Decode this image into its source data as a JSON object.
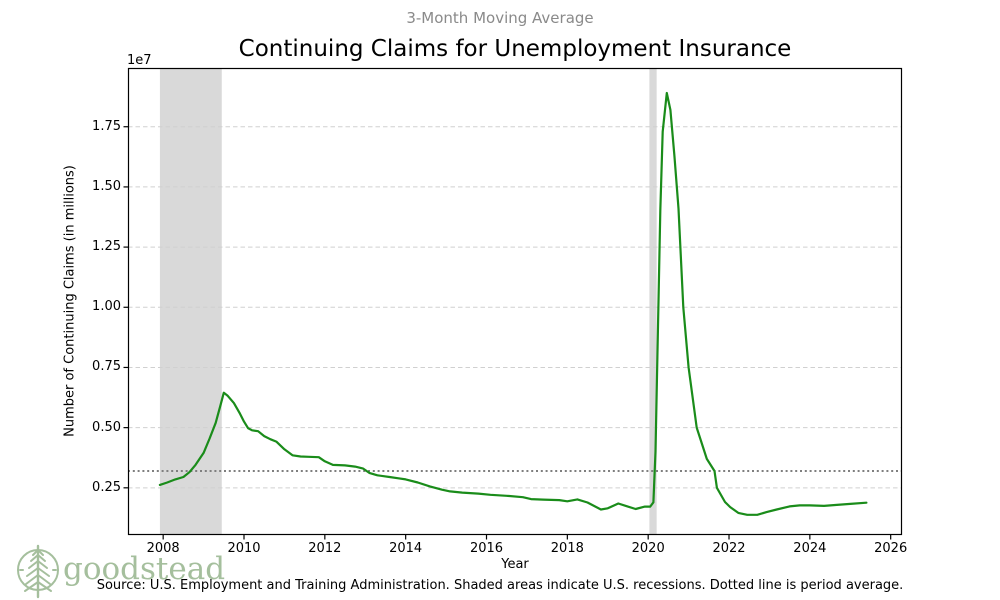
{
  "header": {
    "suptitle": "3-Month Moving Average",
    "title": "Continuing Claims for Unemployment Insurance"
  },
  "branding": {
    "logo_text": "goodstead",
    "logo_color": "#a5bf9d",
    "tree_icon": "pine-tree-in-circle"
  },
  "footer": {
    "source_note": "Source: U.S. Employment and Training Administration. Shaded areas indicate U.S. recessions. Dotted line is period average."
  },
  "chart_data": {
    "type": "line",
    "title": "Continuing Claims for Unemployment Insurance",
    "subtitle": "3-Month Moving Average",
    "xlabel": "Year",
    "ylabel": "Number of Continuing Claims (in millions)",
    "y_scale_offset_label": "1e7",
    "x_ticks": [
      2008,
      2010,
      2012,
      2014,
      2016,
      2018,
      2020,
      2022,
      2024,
      2026
    ],
    "y_ticks_1e7": [
      0.25,
      0.5,
      0.75,
      1.0,
      1.25,
      1.5,
      1.75
    ],
    "xlim": [
      2007.13,
      2026.28
    ],
    "ylim_millions": [
      0.54,
      19.94
    ],
    "grid": {
      "axis": "y",
      "style": "dashed",
      "color": "#d0d0d0"
    },
    "line_color": "#1a8c1a",
    "average_line": {
      "value_millions": 3.2,
      "style": "dotted",
      "color": "#7f7f7f",
      "label": "period average"
    },
    "recession_bands": {
      "color": "rgba(128,128,128,0.3)",
      "ranges": [
        [
          2007.92,
          2009.45
        ],
        [
          2020.03,
          2020.21
        ]
      ]
    },
    "legend": "none",
    "series": [
      {
        "name": "Continuing claims, 3-month moving average",
        "units": "millions",
        "points": [
          [
            2007.92,
            2.62
          ],
          [
            2008.1,
            2.72
          ],
          [
            2008.3,
            2.85
          ],
          [
            2008.5,
            2.95
          ],
          [
            2008.65,
            3.15
          ],
          [
            2008.8,
            3.45
          ],
          [
            2009.0,
            3.95
          ],
          [
            2009.15,
            4.55
          ],
          [
            2009.3,
            5.2
          ],
          [
            2009.42,
            5.95
          ],
          [
            2009.5,
            6.45
          ],
          [
            2009.6,
            6.32
          ],
          [
            2009.75,
            6.02
          ],
          [
            2009.9,
            5.58
          ],
          [
            2010.0,
            5.25
          ],
          [
            2010.1,
            4.98
          ],
          [
            2010.2,
            4.89
          ],
          [
            2010.35,
            4.85
          ],
          [
            2010.5,
            4.65
          ],
          [
            2010.65,
            4.52
          ],
          [
            2010.8,
            4.42
          ],
          [
            2011.0,
            4.1
          ],
          [
            2011.2,
            3.85
          ],
          [
            2011.4,
            3.8
          ],
          [
            2011.6,
            3.79
          ],
          [
            2011.85,
            3.77
          ],
          [
            2012.0,
            3.6
          ],
          [
            2012.2,
            3.45
          ],
          [
            2012.5,
            3.43
          ],
          [
            2012.75,
            3.38
          ],
          [
            2012.95,
            3.3
          ],
          [
            2013.1,
            3.12
          ],
          [
            2013.3,
            3.02
          ],
          [
            2013.6,
            2.95
          ],
          [
            2013.8,
            2.9
          ],
          [
            2014.0,
            2.85
          ],
          [
            2014.3,
            2.72
          ],
          [
            2014.6,
            2.56
          ],
          [
            2014.9,
            2.42
          ],
          [
            2015.1,
            2.35
          ],
          [
            2015.4,
            2.3
          ],
          [
            2015.8,
            2.26
          ],
          [
            2016.1,
            2.21
          ],
          [
            2016.5,
            2.17
          ],
          [
            2016.9,
            2.11
          ],
          [
            2017.1,
            2.03
          ],
          [
            2017.4,
            2.01
          ],
          [
            2017.8,
            1.99
          ],
          [
            2018.0,
            1.94
          ],
          [
            2018.25,
            2.02
          ],
          [
            2018.5,
            1.89
          ],
          [
            2018.83,
            1.6
          ],
          [
            2019.0,
            1.65
          ],
          [
            2019.26,
            1.85
          ],
          [
            2019.45,
            1.75
          ],
          [
            2019.69,
            1.62
          ],
          [
            2019.92,
            1.72
          ],
          [
            2020.05,
            1.72
          ],
          [
            2020.13,
            1.9
          ],
          [
            2020.18,
            4.0
          ],
          [
            2020.24,
            9.0
          ],
          [
            2020.3,
            14.0
          ],
          [
            2020.36,
            17.3
          ],
          [
            2020.46,
            18.9
          ],
          [
            2020.55,
            18.2
          ],
          [
            2020.65,
            16.3
          ],
          [
            2020.75,
            14.1
          ],
          [
            2020.87,
            10.0
          ],
          [
            2021.0,
            7.5
          ],
          [
            2021.2,
            5.0
          ],
          [
            2021.45,
            3.7
          ],
          [
            2021.64,
            3.2
          ],
          [
            2021.7,
            2.5
          ],
          [
            2021.9,
            1.91
          ],
          [
            2022.03,
            1.7
          ],
          [
            2022.23,
            1.46
          ],
          [
            2022.45,
            1.38
          ],
          [
            2022.7,
            1.38
          ],
          [
            2022.93,
            1.49
          ],
          [
            2023.18,
            1.6
          ],
          [
            2023.5,
            1.73
          ],
          [
            2023.75,
            1.77
          ],
          [
            2024.0,
            1.77
          ],
          [
            2024.35,
            1.75
          ],
          [
            2024.67,
            1.79
          ],
          [
            2025.0,
            1.83
          ],
          [
            2025.4,
            1.88
          ]
        ]
      }
    ]
  }
}
